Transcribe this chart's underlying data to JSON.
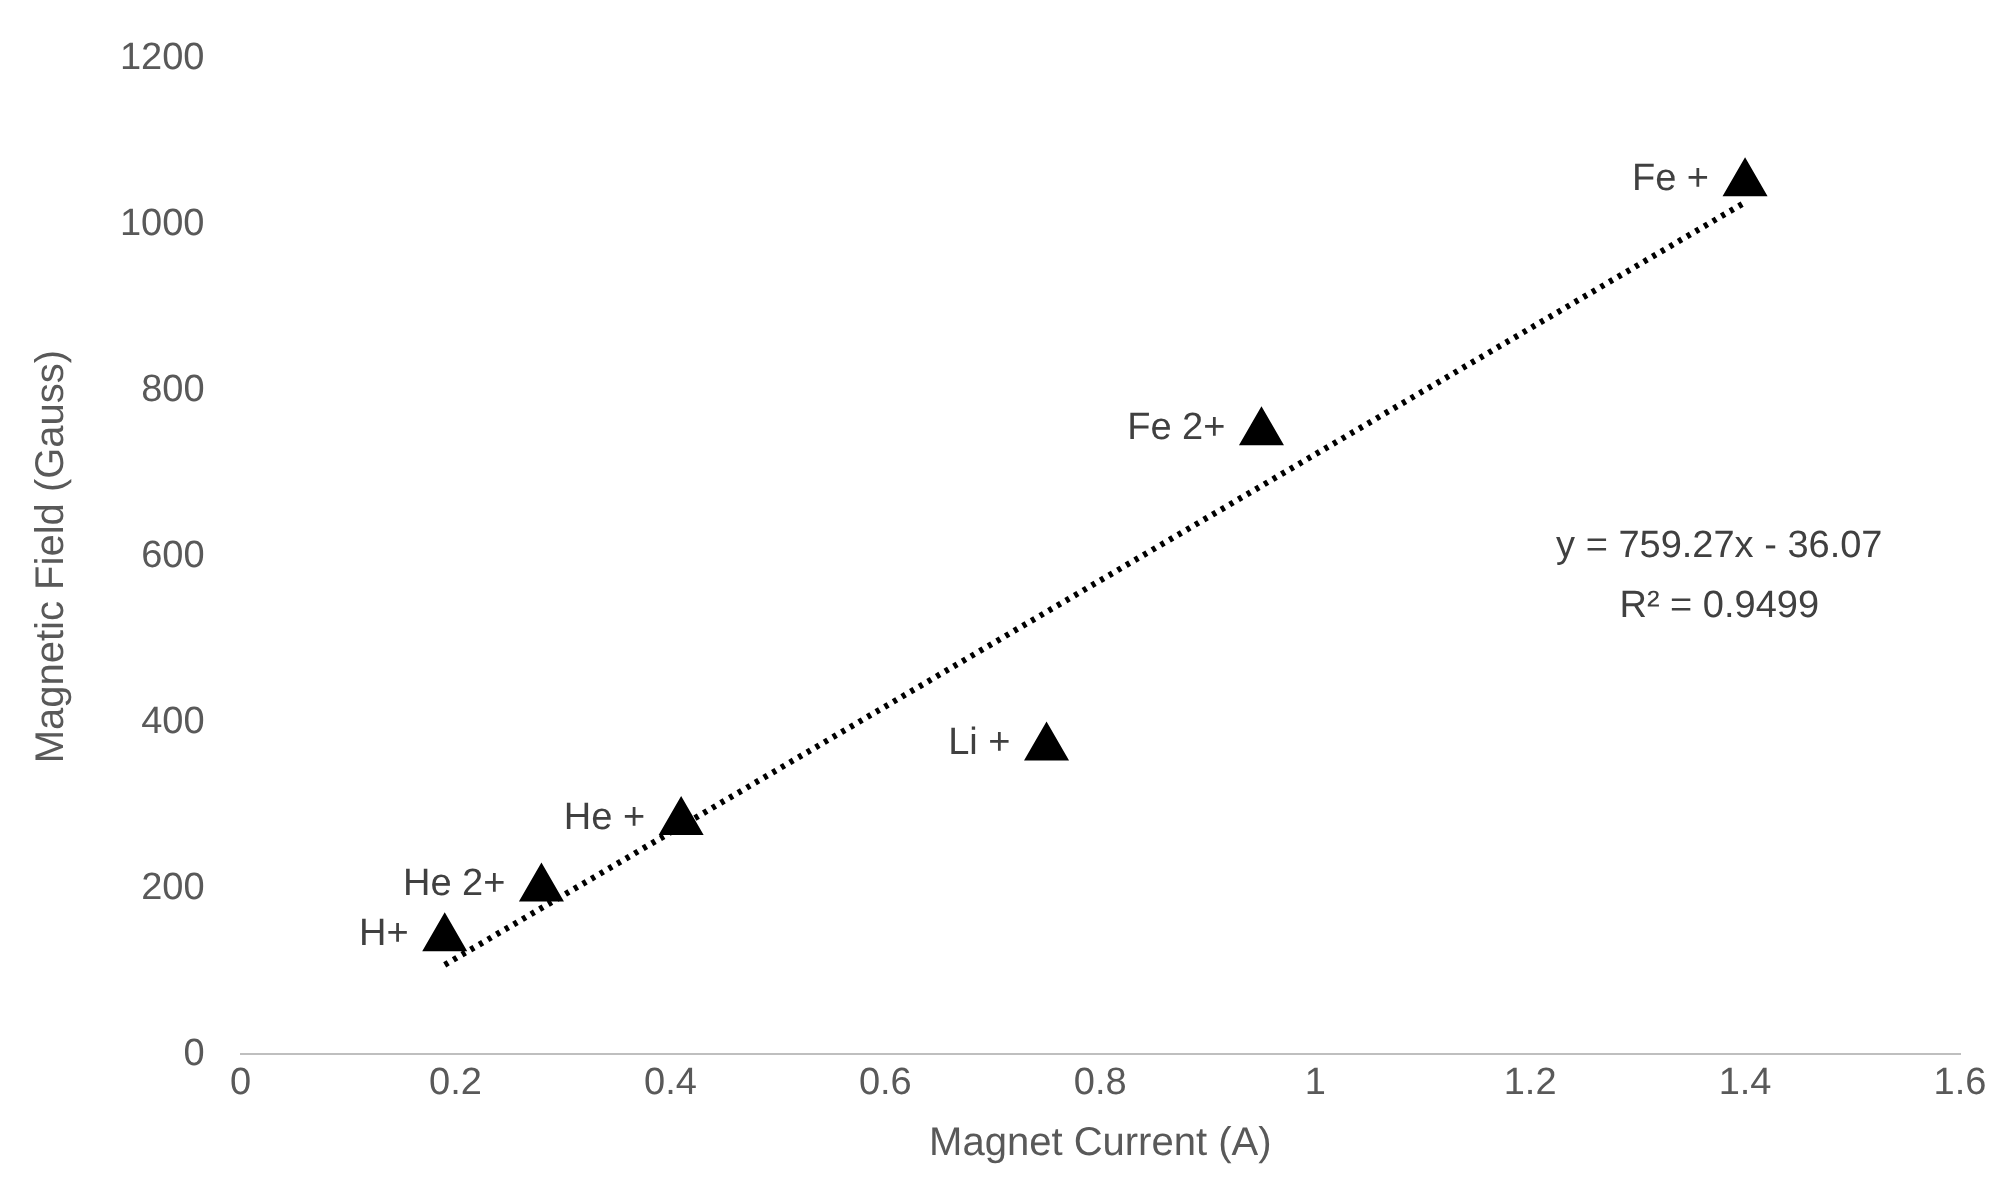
{
  "chart_data": {
    "type": "scatter",
    "xlabel": "Magnet Current (A)",
    "ylabel": "Magnetic Field (Gauss)",
    "xlim": [
      0,
      1.6
    ],
    "xticks": [
      0,
      0.2,
      0.4,
      0.6,
      0.8,
      1,
      1.2,
      1.4,
      1.6
    ],
    "ylim": [
      0,
      1200
    ],
    "yticks": [
      0,
      200,
      400,
      600,
      800,
      1000,
      1200
    ],
    "grid": false,
    "legend": false,
    "series": [
      {
        "color": "#000000",
        "marker": "triangle",
        "x": [
          0.19,
          0.28,
          0.41,
          0.75,
          0.95,
          1.4
        ],
        "values": [
          140,
          200,
          280,
          370,
          750,
          1050
        ]
      },
      {
        "type": "line",
        "color": "#000000",
        "line_style": "dotted",
        "marker": "none",
        "x": [
          0.19,
          1.4
        ],
        "values": [
          108,
          1027
        ]
      }
    ],
    "annotations": [
      {
        "text": "H+",
        "x": 0.19,
        "y": 140
      },
      {
        "text": "He 2+",
        "x": 0.28,
        "y": 200
      },
      {
        "text": "He +",
        "x": 0.41,
        "y": 280
      },
      {
        "text": "Li +",
        "x": 0.75,
        "y": 370
      },
      {
        "text": "Fe 2+",
        "x": 0.95,
        "y": 750
      },
      {
        "text": "Fe +",
        "x": 1.4,
        "y": 1050
      },
      "y = 759.27x - 36.07",
      "R² = 0.9499"
    ]
  }
}
